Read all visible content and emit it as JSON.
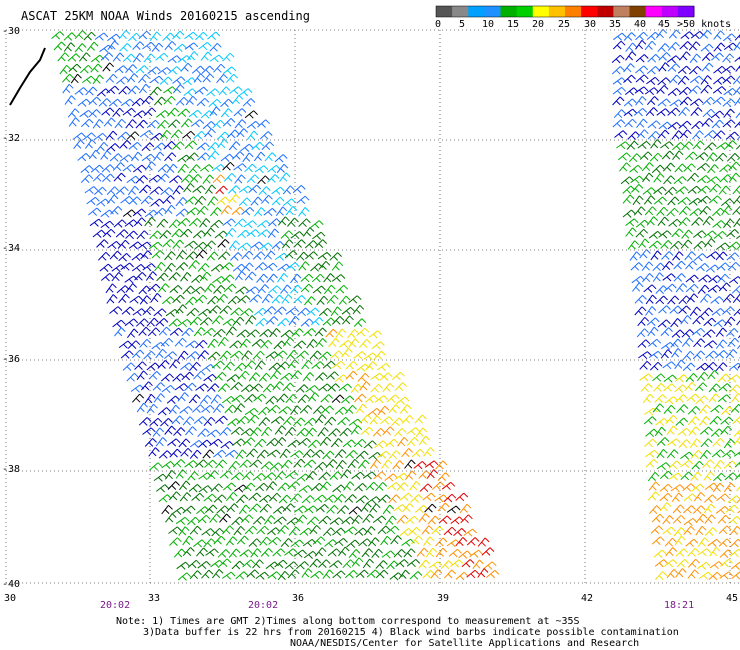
{
  "title": "ASCAT 25KM NOAA Winds 20160215 ascending",
  "scale": {
    "labels": [
      "0",
      "5",
      "10",
      "15",
      "20",
      "25",
      "30",
      "35",
      "40",
      "45",
      ">50 knots"
    ],
    "colors": [
      "#555555",
      "#888888",
      "#00a0ff",
      "#1e90ff",
      "#00b000",
      "#00d000",
      "#ffff00",
      "#ffc000",
      "#ff8000",
      "#ff0000",
      "#c00000",
      "#c08060",
      "#804000",
      "#ff00ff",
      "#c000ff",
      "#8000ff"
    ]
  },
  "lat_labels": [
    "-30",
    "-32",
    "-34",
    "-36",
    "-38",
    "-40"
  ],
  "lon_labels": [
    "30",
    "33",
    "36",
    "39",
    "42",
    "45"
  ],
  "times": [
    "20:02",
    "20:02",
    "18:21"
  ],
  "notes": {
    "line1": "Note: 1) Times are GMT 2)Times along bottom correspond to measurement at ~35S",
    "line2": "3)Data buffer is 22 hrs from 20160215 4) Black wind barbs indicate possible contamination",
    "line3": "NOAA/NESDIS/Center for Satellite Applications and Research"
  },
  "wind_colors": {
    "light": "#00c8ff",
    "blue": "#1e6fff",
    "dark_blue": "#0000c0",
    "green": "#00b000",
    "dark_green": "#007000",
    "yellow": "#f0e000",
    "orange": "#ff9000",
    "red": "#e00000",
    "black": "#000000"
  }
}
